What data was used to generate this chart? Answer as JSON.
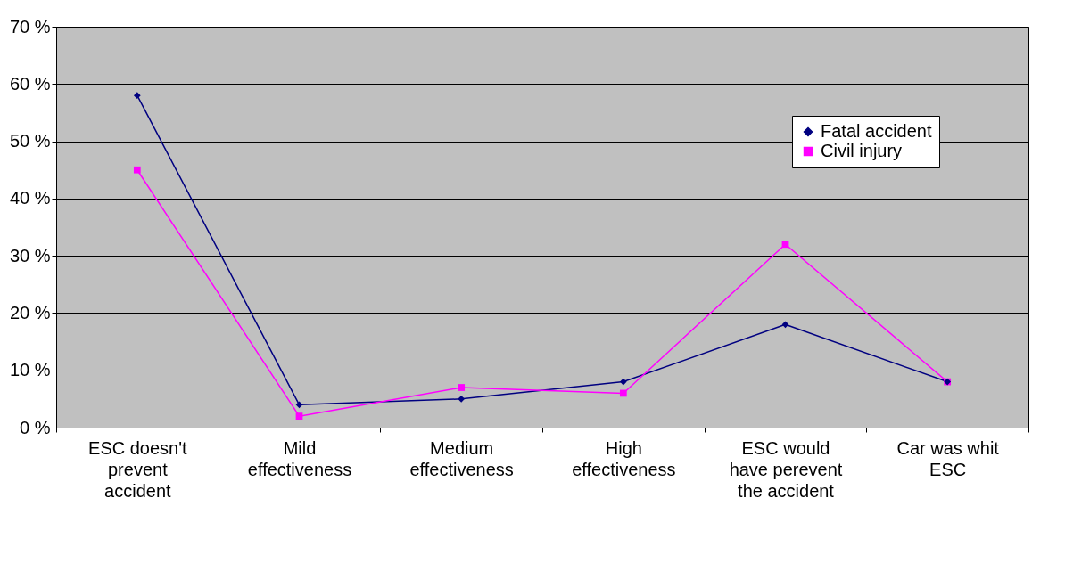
{
  "chart_data": {
    "type": "line",
    "categories": [
      "ESC doesn't prevent accident",
      "Mild effectiveness",
      "Medium effectiveness",
      "High effectiveness",
      "ESC would have perevent the accident",
      "Car was whit ESC"
    ],
    "series": [
      {
        "name": "Fatal accident",
        "color": "#000080",
        "marker": "diamond",
        "values": [
          58,
          4,
          5,
          8,
          18,
          8
        ]
      },
      {
        "name": "Civil injury",
        "color": "#ff00ff",
        "marker": "square",
        "values": [
          45,
          2,
          7,
          6,
          32,
          8
        ]
      }
    ],
    "ylim": [
      0,
      70
    ],
    "yticks": [
      {
        "value": 0,
        "label": "0 %"
      },
      {
        "value": 10,
        "label": "10 %"
      },
      {
        "value": 20,
        "label": "20 %"
      },
      {
        "value": 30,
        "label": "30 %"
      },
      {
        "value": 40,
        "label": "40 %"
      },
      {
        "value": 50,
        "label": "50 %"
      },
      {
        "value": 60,
        "label": "60 %"
      },
      {
        "value": 70,
        "label": "70 %"
      }
    ],
    "grid": "y",
    "legend": "top right",
    "line_style": "solid"
  }
}
